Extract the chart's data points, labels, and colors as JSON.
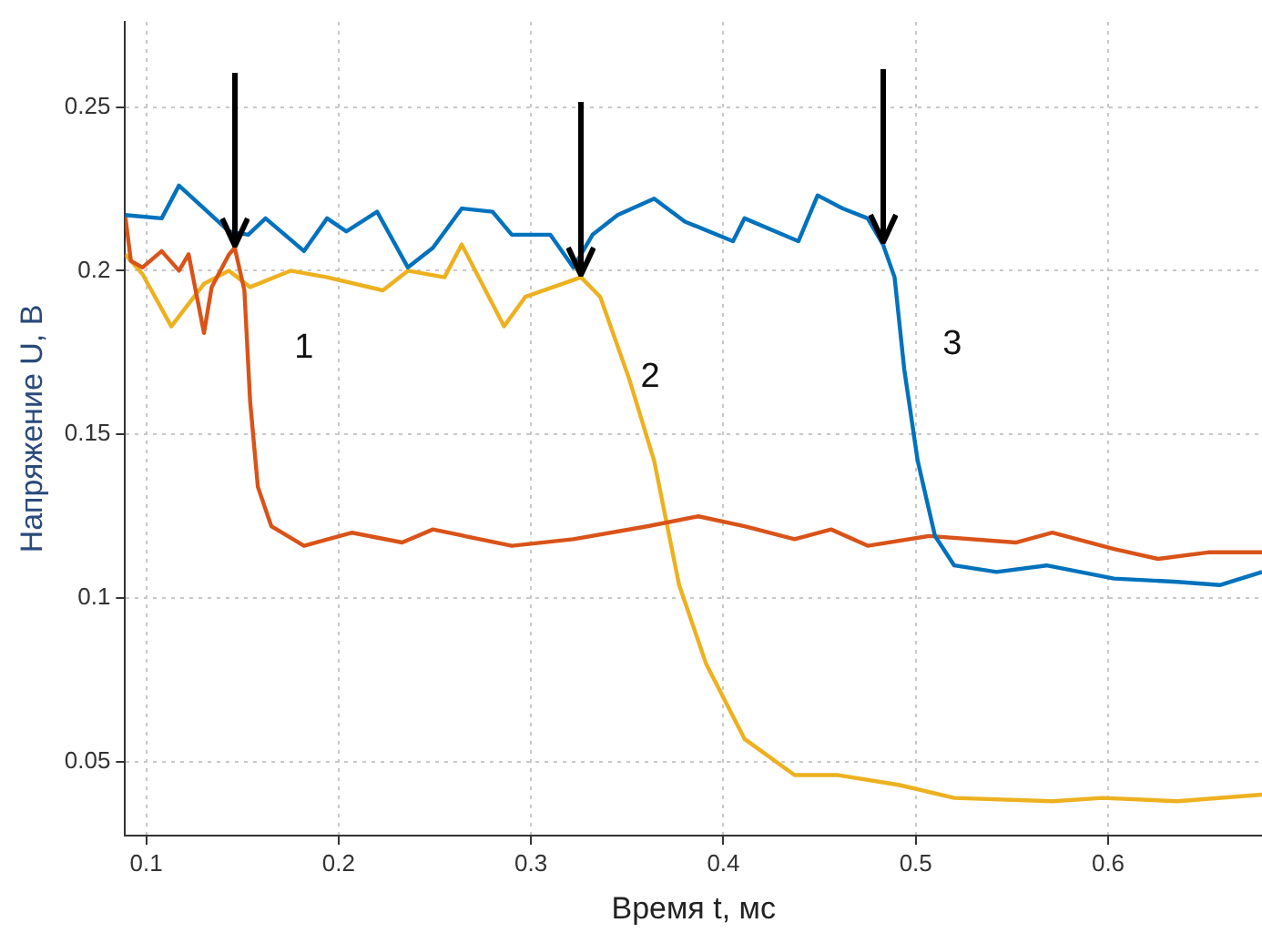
{
  "chart_data": {
    "type": "line",
    "xlabel": "Время t, мс",
    "ylabel": "Напряжение U, В",
    "xlim": [
      0.089,
      0.68
    ],
    "ylim": [
      0.0275,
      0.276
    ],
    "xticks": [
      0.1,
      0.2,
      0.3,
      0.4,
      0.5,
      0.6
    ],
    "yticks": [
      0.05,
      0.1,
      0.15,
      0.2,
      0.25
    ],
    "grid": true,
    "legend": false,
    "marker": "none",
    "line_style": "solid",
    "series": [
      {
        "color": "#0072bd",
        "x": [
          0.089,
          0.108,
          0.117,
          0.143,
          0.153,
          0.162,
          0.182,
          0.194,
          0.204,
          0.22,
          0.236,
          0.249,
          0.264,
          0.28,
          0.29,
          0.31,
          0.322,
          0.332,
          0.345,
          0.364,
          0.38,
          0.405,
          0.411,
          0.439,
          0.449,
          0.462,
          0.475,
          0.483,
          0.489,
          0.494,
          0.501,
          0.51,
          0.52,
          0.542,
          0.568,
          0.603,
          0.636,
          0.658,
          0.68
        ],
        "values": [
          0.217,
          0.216,
          0.226,
          0.212,
          0.211,
          0.216,
          0.206,
          0.216,
          0.212,
          0.218,
          0.201,
          0.207,
          0.219,
          0.218,
          0.211,
          0.211,
          0.201,
          0.211,
          0.217,
          0.222,
          0.215,
          0.209,
          0.216,
          0.209,
          0.223,
          0.219,
          0.216,
          0.208,
          0.198,
          0.17,
          0.142,
          0.119,
          0.11,
          0.108,
          0.11,
          0.106,
          0.105,
          0.104,
          0.108
        ]
      },
      {
        "color": "#d95319",
        "x": [
          0.089,
          0.092,
          0.098,
          0.108,
          0.117,
          0.122,
          0.13,
          0.134,
          0.143,
          0.146,
          0.151,
          0.154,
          0.158,
          0.165,
          0.182,
          0.207,
          0.233,
          0.249,
          0.29,
          0.322,
          0.361,
          0.387,
          0.411,
          0.437,
          0.456,
          0.475,
          0.507,
          0.552,
          0.571,
          0.603,
          0.626,
          0.652,
          0.68
        ],
        "values": [
          0.217,
          0.203,
          0.201,
          0.206,
          0.2,
          0.205,
          0.181,
          0.195,
          0.205,
          0.207,
          0.194,
          0.16,
          0.134,
          0.122,
          0.116,
          0.12,
          0.117,
          0.121,
          0.116,
          0.118,
          0.122,
          0.125,
          0.122,
          0.118,
          0.121,
          0.116,
          0.119,
          0.117,
          0.12,
          0.115,
          0.112,
          0.114,
          0.114
        ]
      },
      {
        "color": "#edb120",
        "x": [
          0.089,
          0.098,
          0.113,
          0.13,
          0.143,
          0.154,
          0.175,
          0.194,
          0.223,
          0.236,
          0.255,
          0.264,
          0.286,
          0.297,
          0.326,
          0.336,
          0.351,
          0.364,
          0.377,
          0.391,
          0.411,
          0.437,
          0.459,
          0.491,
          0.52,
          0.571,
          0.597,
          0.636,
          0.68
        ],
        "values": [
          0.205,
          0.199,
          0.183,
          0.196,
          0.2,
          0.195,
          0.2,
          0.198,
          0.194,
          0.2,
          0.198,
          0.208,
          0.183,
          0.192,
          0.198,
          0.192,
          0.167,
          0.142,
          0.104,
          0.08,
          0.057,
          0.046,
          0.046,
          0.043,
          0.039,
          0.038,
          0.039,
          0.038,
          0.04
        ]
      }
    ],
    "annotations": [
      {
        "text": "1",
        "x": 0.146,
        "y": 0.207
      },
      {
        "text": "2",
        "x": 0.326,
        "y": 0.198
      },
      {
        "text": "3",
        "x": 0.483,
        "y": 0.208
      }
    ]
  }
}
